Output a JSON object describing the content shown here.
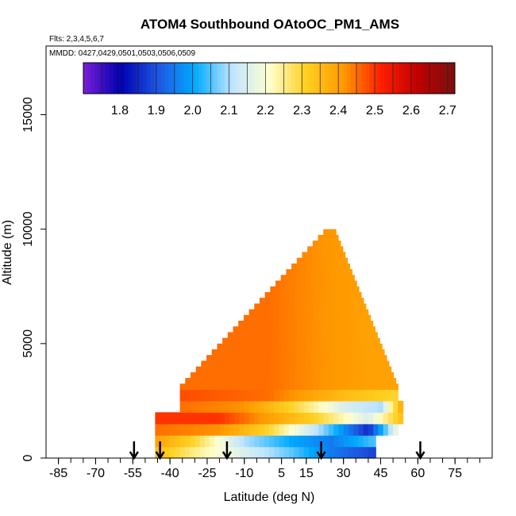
{
  "chart_data": {
    "type": "heatmap",
    "title": "ATOM4 Southbound OAtoOC_PM1_AMS",
    "flights_label": "Flts: 2,3,4,5,6,7",
    "dates_label": "MMDD: 0427,0429,0501,0503,0506,0509",
    "xlabel": "Latitude (deg N)",
    "ylabel": "Altitude (m)",
    "xlim": [
      -90,
      90
    ],
    "ylim": [
      0,
      18000
    ],
    "x_ticks": [
      -85,
      -70,
      -55,
      -40,
      -25,
      -10,
      5,
      15,
      30,
      45,
      60,
      75
    ],
    "x_tick_labels": [
      "-85",
      "-70",
      "-55",
      "-40",
      "-25",
      "-10",
      "5",
      "15",
      "30",
      "45",
      "60",
      "75"
    ],
    "y_ticks": [
      0,
      5000,
      10000,
      15000
    ],
    "y_tick_labels": [
      "0",
      "5000",
      "10000",
      "15000"
    ],
    "colorbar": {
      "min": 1.7,
      "max": 2.72,
      "ticks": [
        1.8,
        1.9,
        2.0,
        2.1,
        2.2,
        2.3,
        2.4,
        2.5,
        2.6,
        2.7
      ],
      "tick_labels": [
        "1.8",
        "1.9",
        "2.0",
        "2.1",
        "2.2",
        "2.3",
        "2.4",
        "2.5",
        "2.6",
        "2.7"
      ],
      "colors": [
        "#7a1fd8",
        "#0000b0",
        "#1f55e0",
        "#00aaff",
        "#bfe4ff",
        "#ffffd0",
        "#ffd020",
        "#ff9900",
        "#ff2000",
        "#c00000",
        "#7a1010"
      ]
    },
    "profile_latitudes": [
      -54.5,
      -44,
      -17,
      21,
      61
    ],
    "coverage": {
      "lat_south": -46,
      "lat_north": 54,
      "top_altitude": 10000,
      "top_latitude": 25
    },
    "layers": [
      {
        "alt_range": [
          0,
          500
        ],
        "lat_range": [
          -46,
          43
        ],
        "values_by_lat": [
          [
            -46,
            2.35
          ],
          [
            -30,
            2.25
          ],
          [
            -10,
            2.15
          ],
          [
            10,
            2.05
          ],
          [
            25,
            1.95
          ],
          [
            43,
            1.88
          ]
        ]
      },
      {
        "alt_range": [
          500,
          1000
        ],
        "lat_range": [
          -46,
          43
        ],
        "values_by_lat": [
          [
            -46,
            2.4
          ],
          [
            -30,
            2.3
          ],
          [
            -10,
            2.1
          ],
          [
            10,
            2.0
          ],
          [
            25,
            1.95
          ],
          [
            43,
            2.05
          ]
        ]
      },
      {
        "alt_range": [
          1000,
          1500
        ],
        "lat_range": [
          -46,
          52
        ],
        "values_by_lat": [
          [
            -46,
            2.45
          ],
          [
            -20,
            2.42
          ],
          [
            0,
            2.3
          ],
          [
            20,
            2.1
          ],
          [
            40,
            1.85
          ],
          [
            52,
            2.2
          ]
        ]
      },
      {
        "alt_range": [
          1500,
          2000
        ],
        "lat_range": [
          -46,
          54
        ],
        "values_by_lat": [
          [
            -46,
            2.5
          ],
          [
            -20,
            2.5
          ],
          [
            0,
            2.4
          ],
          [
            20,
            2.3
          ],
          [
            40,
            2.15
          ],
          [
            54,
            2.35
          ]
        ]
      },
      {
        "alt_range": [
          2000,
          2500
        ],
        "lat_range": [
          -36,
          54
        ],
        "values_by_lat": [
          [
            -36,
            2.45
          ],
          [
            -10,
            2.42
          ],
          [
            10,
            2.3
          ],
          [
            30,
            2.15
          ],
          [
            45,
            2.1
          ],
          [
            54,
            2.4
          ]
        ]
      },
      {
        "alt_range": [
          2500,
          3000
        ],
        "lat_range": [
          -36,
          52
        ],
        "values_by_lat": [
          [
            -36,
            2.48
          ],
          [
            0,
            2.45
          ],
          [
            30,
            2.35
          ],
          [
            52,
            2.3
          ]
        ]
      },
      {
        "alt_range": [
          3000,
          10000
        ],
        "lat_range": [
          -36,
          52
        ],
        "values_by_lat": [
          [
            -36,
            2.45
          ],
          [
            0,
            2.45
          ],
          [
            20,
            2.42
          ],
          [
            40,
            2.4
          ],
          [
            52,
            2.4
          ]
        ]
      }
    ]
  }
}
